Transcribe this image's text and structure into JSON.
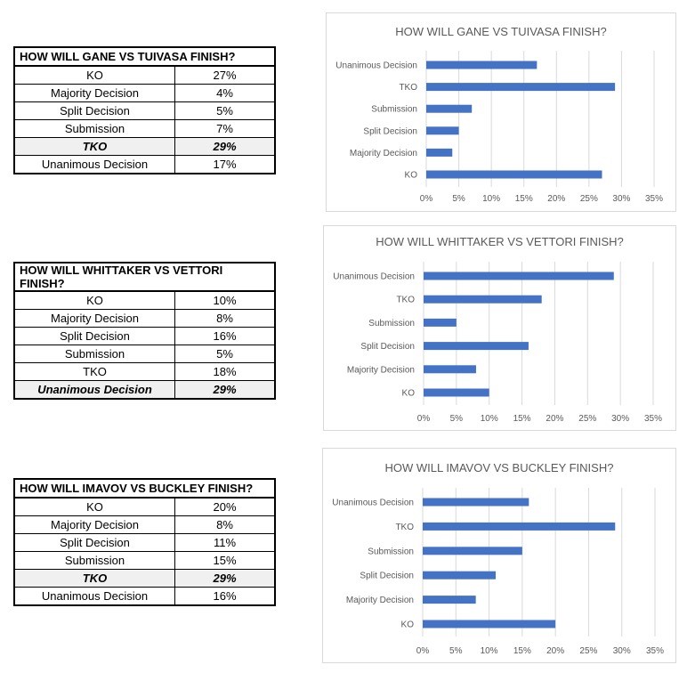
{
  "tables": [
    {
      "title": "HOW WILL GANE VS TUIVASA FINISH?",
      "rows": [
        [
          "KO",
          "27%"
        ],
        [
          "Majority Decision",
          "4%"
        ],
        [
          "Split Decision",
          "5%"
        ],
        [
          "Submission",
          "7%"
        ],
        [
          "TKO",
          "29%"
        ],
        [
          "Unanimous Decision",
          "17%"
        ]
      ],
      "highlight": 4
    },
    {
      "title": "HOW WILL WHITTAKER VS VETTORI FINISH?",
      "rows": [
        [
          "KO",
          "10%"
        ],
        [
          "Majority Decision",
          "8%"
        ],
        [
          "Split Decision",
          "16%"
        ],
        [
          "Submission",
          "5%"
        ],
        [
          "TKO",
          "18%"
        ],
        [
          "Unanimous Decision",
          "29%"
        ]
      ],
      "highlight": 5
    },
    {
      "title": "HOW WILL IMAVOV VS BUCKLEY FINISH?",
      "rows": [
        [
          "KO",
          "20%"
        ],
        [
          "Majority Decision",
          "8%"
        ],
        [
          "Split Decision",
          "11%"
        ],
        [
          "Submission",
          "15%"
        ],
        [
          "TKO",
          "29%"
        ],
        [
          "Unanimous Decision",
          "16%"
        ]
      ],
      "highlight": 4
    }
  ],
  "chart_data": [
    {
      "type": "bar",
      "orientation": "horizontal",
      "title": "HOW WILL GANE VS TUIVASA FINISH?",
      "categories": [
        "KO",
        "Majority Decision",
        "Split Decision",
        "Submission",
        "TKO",
        "Unanimous Decision"
      ],
      "values": [
        27,
        4,
        5,
        7,
        29,
        17
      ],
      "xlim": [
        0,
        35
      ],
      "ticks": [
        "0%",
        "5%",
        "10%",
        "15%",
        "20%",
        "25%",
        "30%",
        "35%"
      ],
      "grid": true,
      "color": "#4472c4"
    },
    {
      "type": "bar",
      "orientation": "horizontal",
      "title": "HOW WILL WHITTAKER VS VETTORI FINISH?",
      "categories": [
        "KO",
        "Majority Decision",
        "Split Decision",
        "Submission",
        "TKO",
        "Unanimous Decision"
      ],
      "values": [
        10,
        8,
        16,
        5,
        18,
        29
      ],
      "xlim": [
        0,
        35
      ],
      "ticks": [
        "0%",
        "5%",
        "10%",
        "15%",
        "20%",
        "25%",
        "30%",
        "35%"
      ],
      "grid": true,
      "color": "#4472c4"
    },
    {
      "type": "bar",
      "orientation": "horizontal",
      "title": "HOW WILL IMAVOV VS BUCKLEY FINISH?",
      "categories": [
        "KO",
        "Majority Decision",
        "Split Decision",
        "Submission",
        "TKO",
        "Unanimous Decision"
      ],
      "values": [
        20,
        8,
        11,
        15,
        29,
        16
      ],
      "xlim": [
        0,
        35
      ],
      "ticks": [
        "0%",
        "5%",
        "10%",
        "15%",
        "20%",
        "25%",
        "30%",
        "35%"
      ],
      "grid": true,
      "color": "#4472c4"
    }
  ]
}
